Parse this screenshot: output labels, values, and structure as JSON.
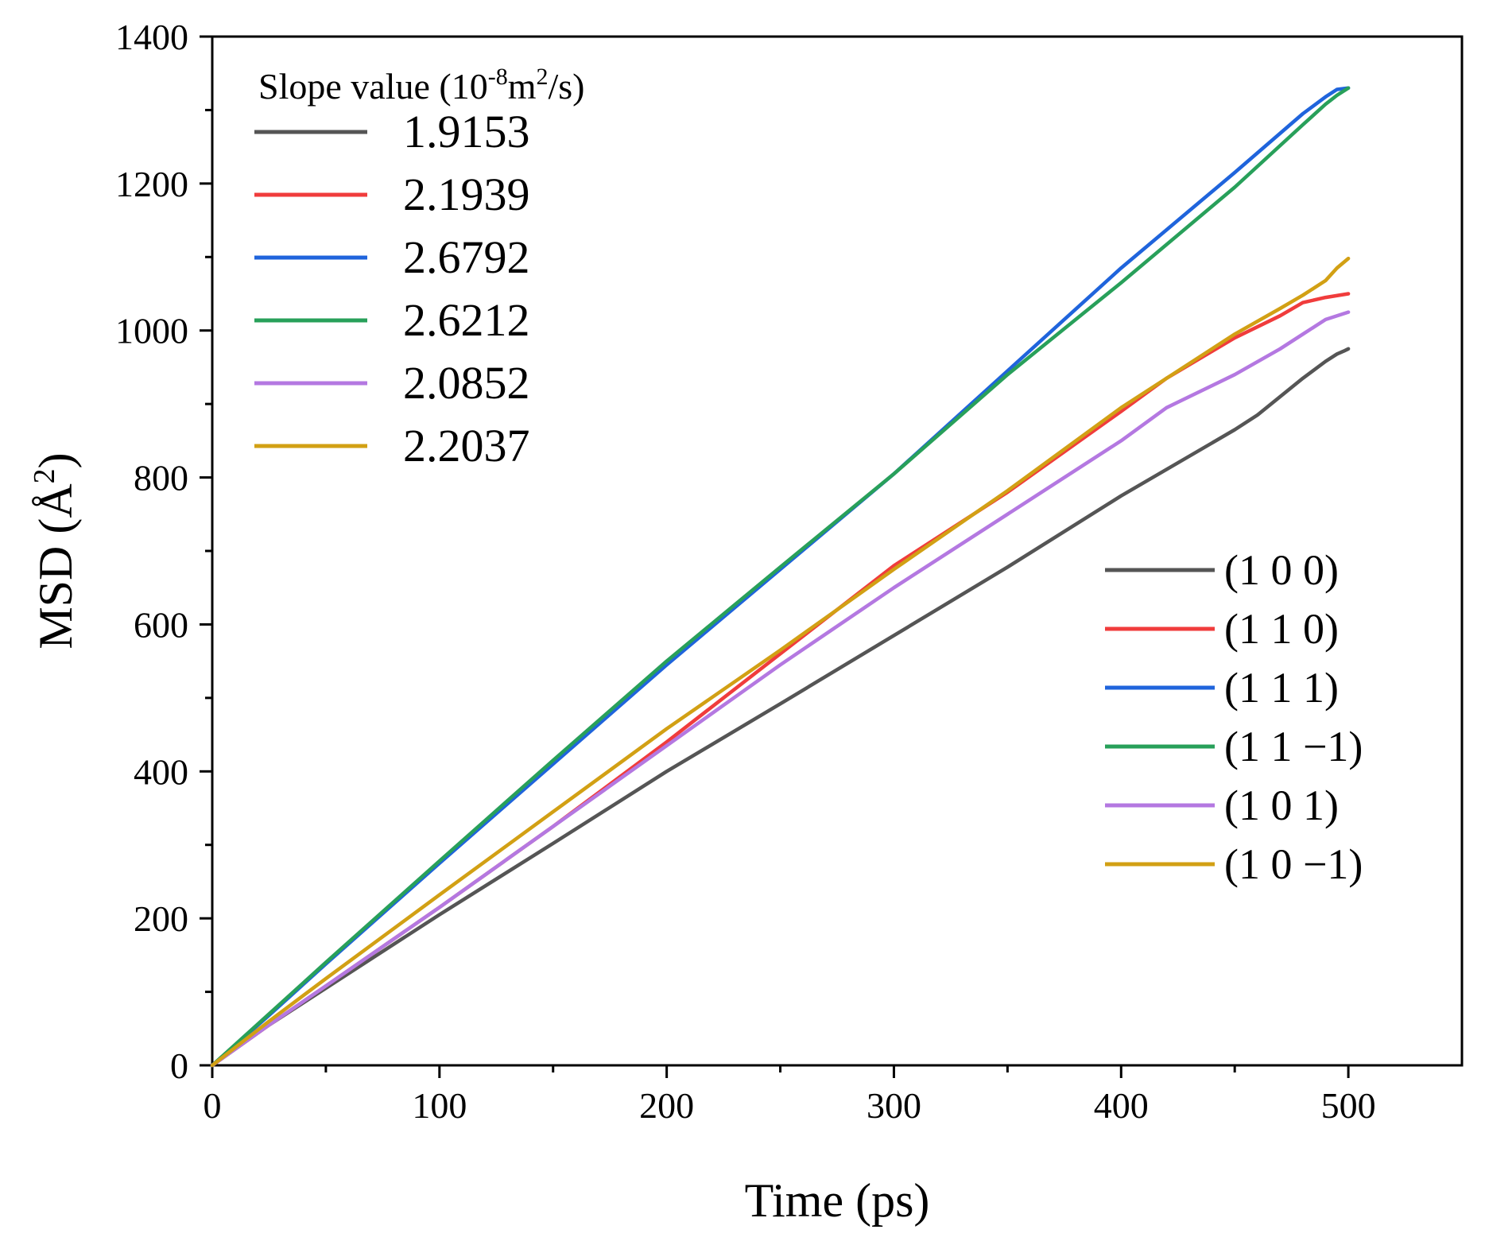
{
  "chart_data": {
    "type": "line",
    "xlabel": "Time (ps)",
    "ylabel_main": "MSD (Å",
    "ylabel_sup": "2",
    "ylabel_close": ")",
    "xlim": [
      0,
      550
    ],
    "ylim": [
      0,
      1400
    ],
    "xticks": [
      0,
      100,
      200,
      300,
      400,
      500
    ],
    "yticks": [
      0,
      200,
      400,
      600,
      800,
      1000,
      1200,
      1400
    ],
    "grid": false,
    "slope_legend": {
      "header_prefix": "Slope value (10",
      "header_exp": "-8",
      "header_mid": "m",
      "header_exp2": "2",
      "header_suffix": "/s)",
      "placement": "top-left"
    },
    "legend_placement": "right",
    "series": [
      {
        "name": "(1 0 0)",
        "slope": "1.9153",
        "color": "#555555",
        "points": [
          [
            0,
            0
          ],
          [
            25,
            55
          ],
          [
            50,
            105
          ],
          [
            100,
            205
          ],
          [
            150,
            302
          ],
          [
            200,
            400
          ],
          [
            250,
            492
          ],
          [
            300,
            585
          ],
          [
            350,
            678
          ],
          [
            400,
            775
          ],
          [
            450,
            865
          ],
          [
            460,
            885
          ],
          [
            480,
            935
          ],
          [
            490,
            958
          ],
          [
            495,
            968
          ],
          [
            498,
            972
          ],
          [
            500,
            975
          ]
        ]
      },
      {
        "name": "(1 1 0)",
        "slope": "2.1939",
        "color": "#f03c3c",
        "points": [
          [
            0,
            0
          ],
          [
            25,
            55
          ],
          [
            50,
            108
          ],
          [
            100,
            215
          ],
          [
            150,
            325
          ],
          [
            200,
            440
          ],
          [
            250,
            560
          ],
          [
            300,
            680
          ],
          [
            350,
            780
          ],
          [
            400,
            890
          ],
          [
            420,
            935
          ],
          [
            450,
            990
          ],
          [
            470,
            1020
          ],
          [
            480,
            1038
          ],
          [
            490,
            1045
          ],
          [
            500,
            1050
          ]
        ]
      },
      {
        "name": "(1 1 1)",
        "slope": "2.6792",
        "color": "#1f64dc",
        "points": [
          [
            0,
            0
          ],
          [
            25,
            68
          ],
          [
            50,
            138
          ],
          [
            100,
            275
          ],
          [
            150,
            410
          ],
          [
            200,
            545
          ],
          [
            250,
            675
          ],
          [
            300,
            805
          ],
          [
            350,
            945
          ],
          [
            400,
            1085
          ],
          [
            450,
            1215
          ],
          [
            480,
            1295
          ],
          [
            490,
            1318
          ],
          [
            495,
            1328
          ],
          [
            500,
            1330
          ]
        ]
      },
      {
        "name": "(1 1 −1)",
        "slope": "2.6212",
        "color": "#28a05a",
        "points": [
          [
            0,
            0
          ],
          [
            25,
            70
          ],
          [
            50,
            140
          ],
          [
            100,
            278
          ],
          [
            150,
            415
          ],
          [
            200,
            550
          ],
          [
            250,
            678
          ],
          [
            300,
            805
          ],
          [
            350,
            940
          ],
          [
            400,
            1065
          ],
          [
            450,
            1195
          ],
          [
            480,
            1280
          ],
          [
            490,
            1308
          ],
          [
            495,
            1320
          ],
          [
            500,
            1330
          ]
        ]
      },
      {
        "name": "(1 0 1)",
        "slope": "2.0852",
        "color": "#b478e1",
        "points": [
          [
            0,
            0
          ],
          [
            25,
            55
          ],
          [
            50,
            108
          ],
          [
            100,
            215
          ],
          [
            150,
            325
          ],
          [
            200,
            435
          ],
          [
            250,
            545
          ],
          [
            300,
            650
          ],
          [
            350,
            750
          ],
          [
            400,
            850
          ],
          [
            420,
            895
          ],
          [
            450,
            940
          ],
          [
            470,
            975
          ],
          [
            480,
            995
          ],
          [
            490,
            1015
          ],
          [
            500,
            1025
          ]
        ]
      },
      {
        "name": "(1 0 −1)",
        "slope": "2.2037",
        "color": "#d2a014",
        "points": [
          [
            0,
            0
          ],
          [
            25,
            60
          ],
          [
            50,
            118
          ],
          [
            100,
            232
          ],
          [
            150,
            345
          ],
          [
            200,
            458
          ],
          [
            250,
            565
          ],
          [
            300,
            675
          ],
          [
            350,
            782
          ],
          [
            400,
            895
          ],
          [
            450,
            995
          ],
          [
            470,
            1030
          ],
          [
            480,
            1048
          ],
          [
            490,
            1068
          ],
          [
            495,
            1085
          ],
          [
            500,
            1098
          ]
        ]
      }
    ]
  }
}
